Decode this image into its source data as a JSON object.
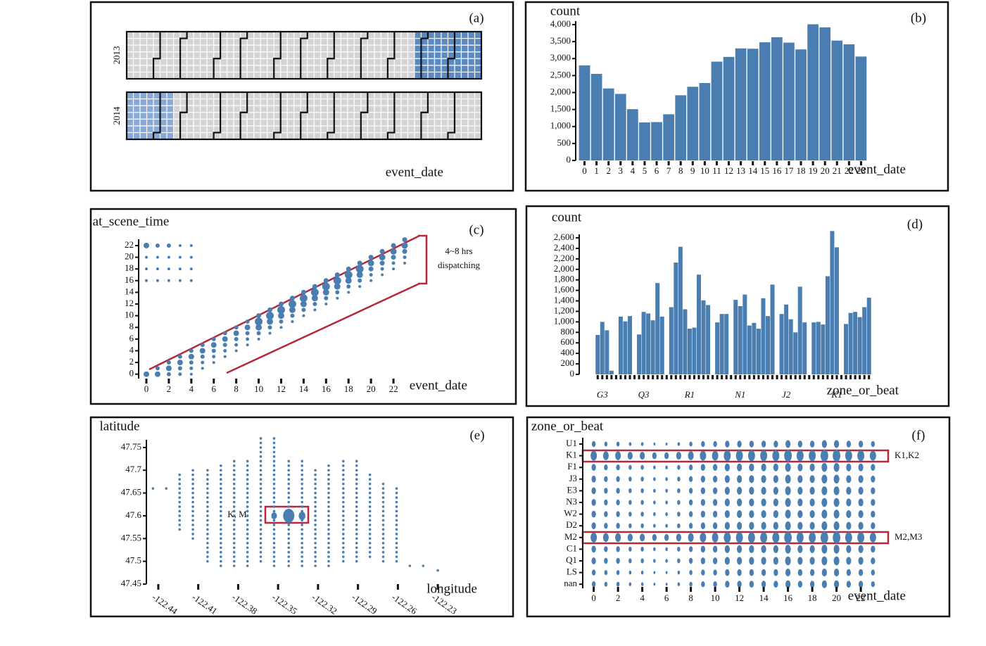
{
  "chart_data": [
    {
      "type": "calendar",
      "panel_label": "(a)",
      "x_label": "event_date",
      "years": [
        "2013",
        "2014"
      ]
    },
    {
      "type": "bar",
      "panel_label": "(b)",
      "y_label": "count",
      "x_label": "event_date",
      "categories": [
        "0",
        "1",
        "2",
        "3",
        "4",
        "5",
        "6",
        "7",
        "8",
        "9",
        "10",
        "11",
        "12",
        "13",
        "14",
        "15",
        "16",
        "17",
        "18",
        "19",
        "20",
        "21",
        "22",
        "23"
      ],
      "values": [
        2800,
        2550,
        2120,
        1960,
        1510,
        1120,
        1130,
        1360,
        1920,
        2170,
        2280,
        2910,
        3050,
        3300,
        3290,
        3480,
        3630,
        3470,
        3270,
        4010,
        3920,
        3530,
        3420,
        3060
      ],
      "color": "#4a7eb0",
      "ylim": [
        0,
        4000
      ],
      "yticks": [
        0,
        500,
        {
          "value": 1000,
          "label": "1,000"
        },
        {
          "value": 1500,
          "label": "1,500"
        },
        {
          "value": 2000,
          "label": "2,000"
        },
        {
          "value": 2500,
          "label": "2,500"
        },
        {
          "value": 3000,
          "label": "3,000"
        },
        {
          "value": 3500,
          "label": "3,500"
        },
        {
          "value": 4000,
          "label": "4,000"
        }
      ]
    },
    {
      "type": "scatter",
      "panel_label": "(c)",
      "y_label": "at_scene_time",
      "x_label": "event_date",
      "annotation": [
        "4~8 hrs",
        "dispatching"
      ],
      "color": "#4a7eb0",
      "xlim": [
        -0.5,
        23.5
      ],
      "ylim": [
        -1,
        23.5
      ],
      "xticks": [
        0,
        2,
        4,
        6,
        8,
        10,
        12,
        14,
        16,
        18,
        20,
        22
      ],
      "yticks": [
        0,
        2,
        4,
        6,
        8,
        10,
        12,
        14,
        16,
        18,
        20,
        22
      ],
      "x": [
        0,
        1,
        1,
        2,
        2,
        2,
        3,
        3,
        3,
        3,
        4,
        4,
        4,
        4,
        4,
        5,
        5,
        5,
        5,
        5,
        6,
        6,
        6,
        6,
        6,
        7,
        7,
        7,
        7,
        7,
        8,
        8,
        8,
        8,
        8,
        9,
        9,
        9,
        9,
        9,
        10,
        10,
        10,
        10,
        10,
        11,
        11,
        11,
        11,
        11,
        12,
        12,
        12,
        12,
        12,
        13,
        13,
        13,
        13,
        13,
        14,
        14,
        14,
        14,
        14,
        15,
        15,
        15,
        15,
        15,
        16,
        16,
        16,
        16,
        16,
        17,
        17,
        17,
        17,
        17,
        18,
        18,
        18,
        18,
        18,
        19,
        19,
        19,
        19,
        19,
        20,
        20,
        20,
        20,
        20,
        21,
        21,
        21,
        21,
        21,
        22,
        22,
        22,
        22,
        22,
        23,
        23,
        23,
        23,
        23,
        0,
        0,
        0,
        0,
        1,
        1,
        1,
        1,
        2,
        2,
        2,
        2,
        3,
        3,
        3,
        3,
        4,
        4,
        4,
        4
      ],
      "y": [
        0,
        1,
        0,
        2,
        1,
        0,
        3,
        2,
        1,
        0,
        4,
        3,
        2,
        1,
        0,
        5,
        4,
        3,
        2,
        1,
        6,
        5,
        4,
        3,
        2,
        7,
        6,
        5,
        4,
        3,
        8,
        7,
        6,
        5,
        4,
        9,
        8,
        7,
        6,
        5,
        10,
        9,
        8,
        7,
        6,
        11,
        10,
        9,
        8,
        7,
        12,
        11,
        10,
        9,
        8,
        13,
        12,
        11,
        10,
        9,
        14,
        13,
        12,
        11,
        10,
        15,
        14,
        13,
        12,
        11,
        16,
        15,
        14,
        13,
        12,
        17,
        16,
        15,
        14,
        13,
        18,
        17,
        16,
        15,
        14,
        19,
        18,
        17,
        16,
        15,
        20,
        19,
        18,
        17,
        16,
        21,
        20,
        19,
        18,
        17,
        22,
        21,
        20,
        19,
        18,
        23,
        22,
        21,
        20,
        19,
        16,
        18,
        20,
        22,
        16,
        18,
        20,
        22,
        16,
        18,
        20,
        22,
        16,
        18,
        20,
        22,
        16,
        18,
        20,
        22
      ],
      "sizes": [
        4,
        3,
        4,
        3,
        4,
        3,
        3,
        4,
        3,
        2.5,
        3,
        4,
        3,
        2.5,
        2,
        3,
        4,
        3,
        2.5,
        2,
        3,
        4,
        3,
        2.5,
        2,
        3,
        4,
        3,
        2.5,
        2,
        3,
        4,
        3,
        2.5,
        2,
        3,
        4,
        3,
        2.5,
        2,
        3.5,
        5.5,
        4.5,
        3,
        2,
        3.5,
        5.5,
        4.5,
        3,
        2,
        3.5,
        5.5,
        4.5,
        3,
        2,
        3.5,
        5.5,
        4.5,
        3,
        2,
        3.5,
        5.5,
        4.5,
        3,
        2,
        3.5,
        5.5,
        4.5,
        3,
        2,
        3.5,
        5.5,
        4.5,
        3,
        2,
        3.5,
        5.5,
        4.5,
        3,
        2,
        3.5,
        5.5,
        4.5,
        3,
        2,
        3.5,
        5.5,
        4.5,
        3,
        2,
        3.5,
        4.5,
        3.5,
        2.5,
        2,
        3.5,
        4.5,
        3.5,
        2.5,
        2,
        3.5,
        4.5,
        3.5,
        2.5,
        2,
        3.5,
        4.5,
        3.5,
        2.5,
        2,
        2,
        2,
        2,
        4,
        2,
        2,
        2,
        3,
        2,
        2,
        2,
        3,
        2,
        2,
        2,
        2,
        2,
        2,
        2,
        2
      ]
    },
    {
      "type": "bar",
      "panel_label": "(d)",
      "y_label": "count",
      "x_label": "zone_or_beat",
      "categories": [
        null,
        "G3",
        null,
        null,
        null,
        null,
        null,
        null,
        null,
        null,
        "Q3",
        null,
        null,
        null,
        null,
        null,
        null,
        null,
        null,
        null,
        "R1",
        null,
        null,
        null,
        null,
        null,
        null,
        null,
        null,
        null,
        null,
        "N1",
        null,
        null,
        null,
        null,
        null,
        null,
        null,
        null,
        null,
        "J2",
        null,
        null,
        null,
        null,
        null,
        null,
        null,
        null,
        null,
        null,
        "K1",
        null,
        null,
        null,
        null,
        null,
        null,
        null
      ],
      "values": [
        750,
        1000,
        840,
        70,
        0,
        1100,
        1010,
        1110,
        0,
        760,
        1190,
        1160,
        1030,
        1740,
        1100,
        0,
        1280,
        2130,
        2430,
        1240,
        870,
        890,
        1900,
        1410,
        1320,
        0,
        990,
        1150,
        1150,
        0,
        1420,
        1300,
        1520,
        930,
        980,
        870,
        1450,
        1110,
        1710,
        0,
        1150,
        1330,
        1050,
        800,
        1670,
        990,
        0,
        990,
        1000,
        950,
        1870,
        2730,
        2420,
        0,
        960,
        1170,
        1190,
        1090,
        1280,
        1460
      ],
      "color": "#4a7eb0",
      "ylim": [
        0,
        2600
      ],
      "yticks": [
        0,
        200,
        400,
        600,
        800,
        {
          "value": 1000,
          "label": "1,000"
        },
        {
          "value": 1200,
          "label": "1,200"
        },
        {
          "value": 1400,
          "label": "1,400"
        },
        {
          "value": 1600,
          "label": "1,600"
        },
        {
          "value": 1800,
          "label": "1,800"
        },
        {
          "value": 2000,
          "label": "2,000"
        },
        {
          "value": 2200,
          "label": "2,200"
        },
        {
          "value": 2400,
          "label": "2,400"
        },
        {
          "value": 2600,
          "label": "2,600"
        }
      ]
    },
    {
      "type": "dot-columns",
      "panel_label": "(e)",
      "y_label": "latitude",
      "x_label": "longitude",
      "annotation": "K, M",
      "color": "#4a7eb0",
      "xlim": [
        -122.45,
        -122.22
      ],
      "ylim": [
        47.45,
        47.78
      ],
      "xticks": [
        -122.44,
        -122.41,
        -122.38,
        -122.35,
        -122.32,
        -122.29,
        -122.26,
        -122.23
      ],
      "yticks": [
        47.45,
        47.5,
        47.55,
        47.6,
        47.65,
        47.7,
        47.75
      ],
      "x": [
        -122.444,
        -122.434,
        -122.424,
        -122.414,
        -122.403,
        -122.393,
        -122.383,
        -122.373,
        -122.363,
        -122.353,
        -122.342,
        -122.332,
        -122.322,
        -122.312,
        -122.301,
        -122.291,
        -122.281,
        -122.271,
        -122.261,
        -122.251,
        -122.241,
        -122.23
      ],
      "y_low": [
        47.66,
        47.66,
        47.57,
        47.55,
        47.5,
        47.49,
        47.49,
        47.49,
        47.5,
        47.49,
        47.49,
        47.49,
        47.49,
        47.49,
        47.5,
        47.5,
        47.51,
        47.5,
        47.5,
        47.49,
        47.49,
        47.48
      ],
      "y_high": [
        47.66,
        47.66,
        47.69,
        47.7,
        47.7,
        47.71,
        47.72,
        47.72,
        47.77,
        47.77,
        47.72,
        47.72,
        47.7,
        47.71,
        47.72,
        47.72,
        47.69,
        47.67,
        47.66,
        47.49,
        47.49,
        47.48
      ],
      "bubble_x": [
        -122.353,
        -122.342,
        -122.332
      ],
      "bubble_y": [
        47.6,
        47.6,
        47.6
      ],
      "bubble_sizes": [
        5,
        10,
        6
      ]
    },
    {
      "type": "bubble-grid",
      "panel_label": "(f)",
      "y_label": "zone_or_beat",
      "x_label": "event_date",
      "annotations": [
        "K1,K2",
        "M2,M3"
      ],
      "color": "#4a7eb0",
      "xlim": [
        -0.5,
        23.5
      ],
      "xticks": [
        0,
        2,
        4,
        6,
        8,
        10,
        12,
        14,
        16,
        18,
        20,
        22
      ],
      "x": [
        0,
        1,
        2,
        3,
        4,
        5,
        6,
        7,
        8,
        9,
        10,
        11,
        12,
        13,
        14,
        15,
        16,
        17,
        18,
        19,
        20,
        21,
        22,
        23
      ],
      "y_categories": [
        "U1",
        "K1",
        "F1",
        "J3",
        "E3",
        "N3",
        "W2",
        "D2",
        "M2",
        "C1",
        "Q1",
        "LS",
        "nan"
      ],
      "sizes": [
        [
          3,
          2.5,
          2.5,
          2,
          2,
          1.5,
          1.5,
          2,
          2.5,
          3,
          3,
          3.5,
          3.5,
          3.5,
          3.5,
          3.5,
          4,
          3.5,
          3.5,
          4,
          4,
          3.5,
          3.5,
          3
        ],
        [
          5,
          4.5,
          4.5,
          4,
          4,
          3.5,
          3.5,
          4,
          4.5,
          5,
          5,
          5.5,
          5.5,
          5.5,
          5.5,
          5.5,
          6,
          5.5,
          5.5,
          6,
          6,
          5.5,
          5.5,
          5
        ],
        [
          3.5,
          3,
          3,
          2.5,
          2.5,
          2,
          2,
          2.5,
          3,
          3.5,
          3.5,
          4,
          4,
          4,
          4,
          4,
          4.5,
          4,
          4,
          4.5,
          4.5,
          4,
          4,
          3.5
        ],
        [
          3.5,
          3,
          3,
          2.5,
          2.5,
          2,
          2,
          2.5,
          3,
          3.5,
          3.5,
          4,
          4,
          4,
          4,
          4,
          4.5,
          4,
          4,
          4.5,
          4.5,
          4,
          4,
          3.5
        ],
        [
          3.5,
          3,
          3,
          2.5,
          2.5,
          2,
          2,
          2.5,
          3,
          3.5,
          3.5,
          4,
          4,
          4,
          4,
          4,
          4.5,
          4,
          4,
          4.5,
          4.5,
          4,
          4,
          3.5
        ],
        [
          3.5,
          3,
          3,
          2.5,
          2.5,
          2,
          2,
          2.5,
          3,
          3.5,
          3.5,
          4,
          4,
          4,
          4,
          4,
          4.5,
          4,
          4,
          4.5,
          4.5,
          4,
          4,
          3.5
        ],
        [
          3.5,
          3,
          3,
          2.5,
          2.5,
          2,
          2,
          2.5,
          3,
          3.5,
          3.5,
          4,
          4,
          4,
          4,
          4,
          4.5,
          4,
          4,
          4.5,
          4.5,
          4,
          4,
          3.5
        ],
        [
          3.5,
          3,
          3,
          2.5,
          2.5,
          2,
          2,
          2.5,
          3,
          3.5,
          3.5,
          4,
          4,
          4,
          4,
          4,
          4.5,
          4,
          4,
          4.5,
          4.5,
          4,
          4,
          3.5
        ],
        [
          5,
          4.5,
          4.5,
          4,
          4,
          3.5,
          3.5,
          4,
          4.5,
          5,
          5,
          5.5,
          5.5,
          5.5,
          5.5,
          5.5,
          6,
          5.5,
          5.5,
          6,
          6,
          5.5,
          5.5,
          5
        ],
        [
          3.5,
          3,
          3,
          2.5,
          2.5,
          2,
          2,
          2.5,
          3,
          3.5,
          3.5,
          4,
          4,
          4,
          4,
          4,
          4.5,
          4,
          4,
          4.5,
          4.5,
          4,
          4,
          3.5
        ],
        [
          3.5,
          3,
          3,
          2.5,
          2.5,
          2,
          2,
          2.5,
          3,
          3.5,
          3.5,
          4,
          4,
          4,
          4,
          4,
          4.5,
          4,
          4,
          4.5,
          4.5,
          4,
          4,
          3.5
        ],
        [
          3,
          2.5,
          2.5,
          2,
          2,
          1.5,
          1.5,
          2,
          2.5,
          3,
          3,
          3.5,
          3.5,
          3.5,
          3.5,
          3.5,
          4,
          3.5,
          3.5,
          4,
          4,
          3.5,
          3.5,
          3
        ],
        [
          3,
          2.5,
          2.5,
          2,
          2,
          1.5,
          1.5,
          2,
          2.5,
          3,
          3,
          3.5,
          3.5,
          3.5,
          3.5,
          3.5,
          4,
          3.5,
          3.5,
          4,
          4,
          3.5,
          3.5,
          3
        ]
      ]
    }
  ]
}
